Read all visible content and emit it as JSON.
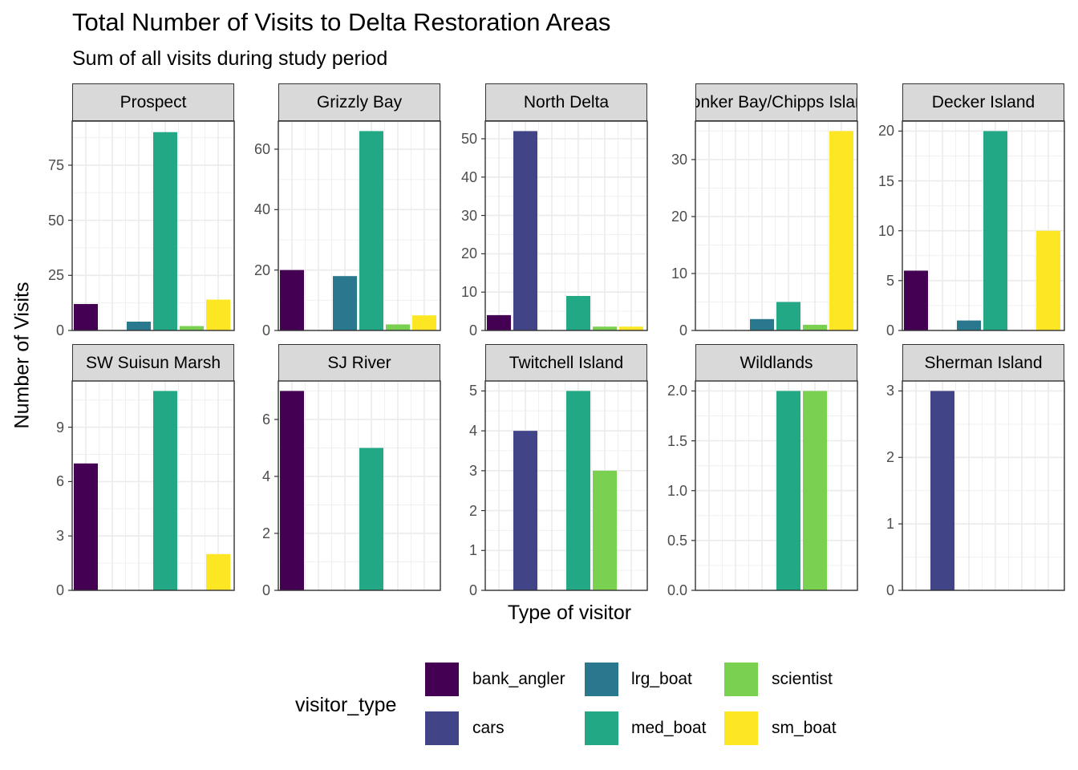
{
  "chart_data": {
    "type": "bar",
    "title": "Total Number of Visits to Delta Restoration Areas",
    "subtitle": "Sum of all visits during study period",
    "xlabel": "Type of visitor",
    "ylabel": "Number of Visits",
    "legend_title": "visitor_type",
    "legend_position": "bottom",
    "grid": true,
    "categories": [
      "bank_angler",
      "cars",
      "lrg_boat",
      "med_boat",
      "scientist",
      "sm_boat"
    ],
    "colors": {
      "bank_angler": "#440154",
      "cars": "#414487",
      "lrg_boat": "#2a788e",
      "med_boat": "#22a884",
      "scientist": "#7ad151",
      "sm_boat": "#fde725"
    },
    "facets": [
      {
        "name": "Prospect",
        "ylim": [
          0,
          95
        ],
        "yticks": [
          0,
          25,
          50,
          75
        ],
        "values": {
          "bank_angler": 12,
          "lrg_boat": 4,
          "med_boat": 90,
          "scientist": 2,
          "sm_boat": 14
        }
      },
      {
        "name": "Grizzly Bay",
        "ylim": [
          0,
          69.3
        ],
        "yticks": [
          0,
          20,
          40,
          60
        ],
        "values": {
          "bank_angler": 20,
          "lrg_boat": 18,
          "med_boat": 66,
          "scientist": 2,
          "sm_boat": 5
        }
      },
      {
        "name": "North Delta",
        "ylim": [
          0,
          54.6
        ],
        "yticks": [
          0,
          10,
          20,
          30,
          40,
          50
        ],
        "values": {
          "bank_angler": 4,
          "cars": 52,
          "med_boat": 9,
          "scientist": 1,
          "sm_boat": 1
        }
      },
      {
        "name": "Honker Bay/Chipps Island",
        "ylim": [
          0,
          36.75
        ],
        "yticks": [
          0,
          10,
          20,
          30
        ],
        "values": {
          "lrg_boat": 2,
          "med_boat": 5,
          "scientist": 1,
          "sm_boat": 35
        }
      },
      {
        "name": "Decker Island",
        "ylim": [
          0,
          21
        ],
        "yticks": [
          0,
          5,
          10,
          15,
          20
        ],
        "values": {
          "bank_angler": 6,
          "lrg_boat": 1,
          "med_boat": 20,
          "sm_boat": 10
        }
      },
      {
        "name": "SW Suisun Marsh",
        "ylim": [
          0,
          11.55
        ],
        "yticks": [
          0,
          3,
          6,
          9
        ],
        "values": {
          "bank_angler": 7,
          "med_boat": 11,
          "sm_boat": 2
        }
      },
      {
        "name": "SJ River",
        "ylim": [
          0,
          7.35
        ],
        "yticks": [
          0,
          2,
          4,
          6
        ],
        "values": {
          "bank_angler": 7,
          "med_boat": 5
        }
      },
      {
        "name": "Twitchell Island",
        "ylim": [
          0,
          5.25
        ],
        "yticks": [
          0,
          1,
          2,
          3,
          4,
          5
        ],
        "values": {
          "cars": 4,
          "med_boat": 5,
          "scientist": 3
        }
      },
      {
        "name": "Wildlands",
        "ylim": [
          0,
          2.1
        ],
        "yticks": [
          "0.0",
          "0.5",
          "1.0",
          "1.5",
          "2.0"
        ],
        "values": {
          "med_boat": 2,
          "scientist": 2
        }
      },
      {
        "name": "Sherman Island",
        "ylim": [
          0,
          3.15
        ],
        "yticks": [
          0,
          1,
          2,
          3
        ],
        "values": {
          "cars": 3
        }
      }
    ]
  }
}
